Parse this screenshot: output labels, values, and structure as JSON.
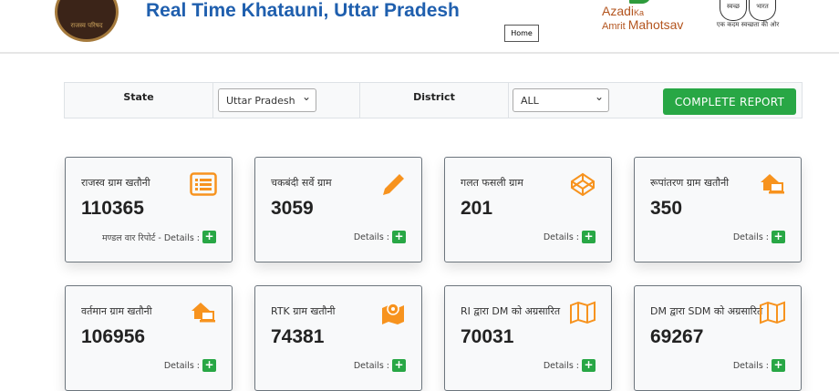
{
  "header": {
    "title": "Real Time Khatauni, Uttar Pradesh",
    "home_label": "Home",
    "seal_text": "राजस्व परिषद",
    "azadi_logo": "Azadi Ka Amrit Mahotsav",
    "swachh_logo": {
      "left": "स्वच्छ",
      "right": "भारत",
      "tagline": "एक कदम स्वच्छता की ओर"
    }
  },
  "filter": {
    "state_label": "State",
    "state_value": "Uttar Pradesh",
    "district_label": "District",
    "district_value": "ALL",
    "report_button": "COMPLETE REPORT"
  },
  "accent_color": "#f7931e",
  "cards": [
    {
      "title": "राजस्व ग्राम खतौनी",
      "value": "110365",
      "details": "मण्डल वार रिपोर्ट - Details :",
      "icon": "list-icon"
    },
    {
      "title": "चकबंदी सर्वे ग्राम",
      "value": "3059",
      "details": "Details :",
      "icon": "pencil-icon"
    },
    {
      "title": "गलत फसली ग्राम",
      "value": "201",
      "details": "Details :",
      "icon": "codepen-icon"
    },
    {
      "title": "रूपांतरण ग्राम खतौनी",
      "value": "350",
      "details": "Details :",
      "icon": "house-laptop-icon"
    },
    {
      "title": "वर्तमान ग्राम खतौनी",
      "value": "106956",
      "details": "Details :",
      "icon": "house-laptop-icon"
    },
    {
      "title": "RTK ग्राम खतौनी",
      "value": "74381",
      "details": "Details :",
      "icon": "map-pin-icon"
    },
    {
      "title": "RI द्वारा DM को अग्रसारित",
      "value": "70031",
      "details": "Details :",
      "icon": "map-icon"
    },
    {
      "title": "DM द्वारा SDM को अग्रसारित",
      "value": "69267",
      "details": "Details :",
      "icon": "map-icon"
    }
  ]
}
